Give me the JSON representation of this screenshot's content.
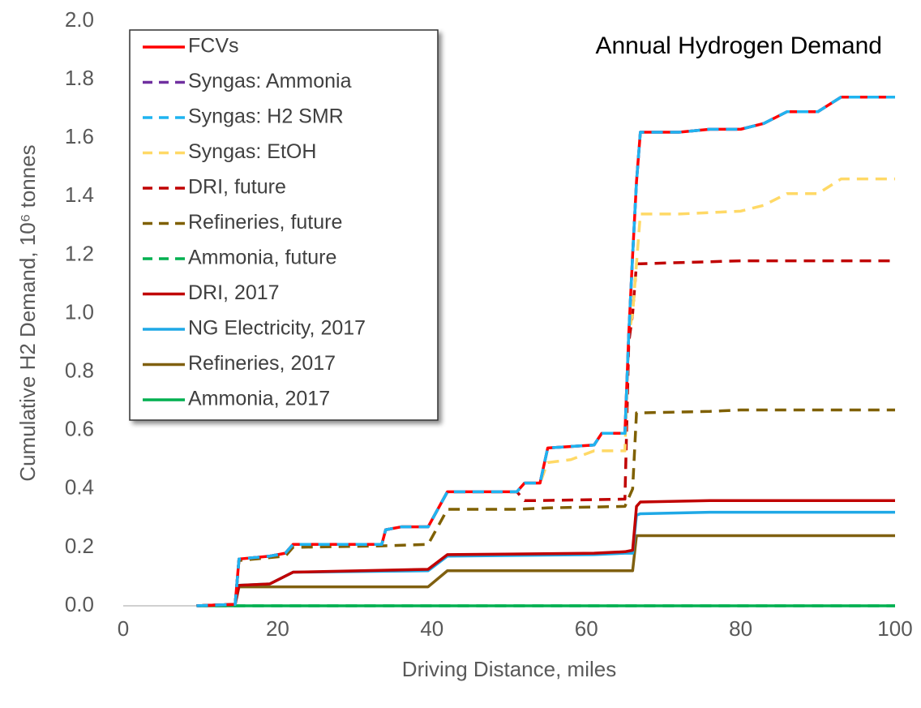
{
  "chart_data": {
    "type": "line",
    "annotation": "Annual Hydrogen Demand",
    "x_label": "Driving Distance, miles",
    "y_label": "Cumulative H2 Demand, 10⁶ tonnes",
    "xlim": [
      0,
      100
    ],
    "xticks": [
      0,
      20,
      40,
      60,
      80,
      100
    ],
    "ylim": [
      0,
      2
    ],
    "yticks": [
      {
        "value": 0,
        "label": "0.0"
      },
      0.2,
      0.4,
      0.6,
      0.8,
      {
        "value": 1,
        "label": "1.0"
      },
      1.2,
      1.4,
      1.6,
      1.8,
      {
        "value": 2,
        "label": "2.0"
      }
    ],
    "legend": "upper left",
    "series": [
      {
        "name": "FCVs",
        "color": "#ff0000",
        "dash": false,
        "x": [
          9.5,
          14.5,
          15,
          19,
          21,
          22,
          33.5,
          34,
          36,
          39.5,
          42,
          51,
          52,
          54,
          55,
          61,
          62,
          65,
          65.5,
          66,
          66.5,
          67,
          72,
          76,
          80,
          83,
          86,
          90,
          93,
          100
        ],
        "values": [
          0,
          0.005,
          0.16,
          0.17,
          0.18,
          0.21,
          0.21,
          0.26,
          0.27,
          0.27,
          0.39,
          0.39,
          0.42,
          0.42,
          0.54,
          0.55,
          0.59,
          0.59,
          0.93,
          1.2,
          1.45,
          1.62,
          1.62,
          1.63,
          1.63,
          1.65,
          1.69,
          1.69,
          1.74,
          1.74
        ]
      },
      {
        "name": "Syngas: Ammonia",
        "color": "#7030a0",
        "dash": true,
        "x": [
          9.5,
          14.5,
          15,
          19,
          21,
          22,
          33.5,
          34,
          36,
          39.5,
          42,
          51,
          52,
          54,
          55,
          61,
          62,
          65,
          65.5,
          66,
          66.5,
          67,
          72,
          76,
          80,
          83,
          86,
          90,
          93,
          100
        ],
        "values": [
          0,
          0.005,
          0.16,
          0.17,
          0.18,
          0.21,
          0.21,
          0.26,
          0.27,
          0.27,
          0.39,
          0.39,
          0.42,
          0.42,
          0.54,
          0.55,
          0.59,
          0.59,
          0.93,
          1.2,
          1.45,
          1.62,
          1.62,
          1.63,
          1.63,
          1.65,
          1.69,
          1.69,
          1.74,
          1.74
        ]
      },
      {
        "name": "Syngas: H2 SMR",
        "color": "#1fb4f0",
        "dash": true,
        "x": [
          9.5,
          14.5,
          15,
          19,
          21,
          22,
          33.5,
          34,
          36,
          39.5,
          42,
          51,
          52,
          54,
          55,
          61,
          62,
          65,
          65.5,
          66,
          66.5,
          67,
          72,
          76,
          80,
          83,
          86,
          90,
          93,
          100
        ],
        "values": [
          0,
          0.005,
          0.16,
          0.17,
          0.18,
          0.21,
          0.21,
          0.26,
          0.27,
          0.27,
          0.39,
          0.39,
          0.42,
          0.42,
          0.54,
          0.55,
          0.59,
          0.59,
          0.93,
          1.2,
          1.45,
          1.62,
          1.62,
          1.63,
          1.63,
          1.65,
          1.69,
          1.69,
          1.74,
          1.74
        ]
      },
      {
        "name": "Syngas: EtOH",
        "color": "#ffd966",
        "dash": true,
        "x": [
          9.5,
          14.5,
          15,
          19,
          21,
          22,
          33.5,
          34,
          36,
          39.5,
          42,
          51,
          52,
          54,
          55,
          58,
          61,
          65,
          65.5,
          66,
          67,
          72,
          76,
          80,
          83,
          86,
          90,
          93,
          100
        ],
        "values": [
          0,
          0.005,
          0.16,
          0.17,
          0.18,
          0.21,
          0.21,
          0.26,
          0.27,
          0.27,
          0.39,
          0.39,
          0.42,
          0.42,
          0.49,
          0.5,
          0.53,
          0.53,
          0.93,
          1.0,
          1.34,
          1.34,
          1.345,
          1.35,
          1.37,
          1.41,
          1.41,
          1.46,
          1.46
        ]
      },
      {
        "name": "DRI, future",
        "color": "#c00000",
        "dash": true,
        "x": [
          9.5,
          14.5,
          15,
          19,
          21,
          22,
          33.5,
          34,
          36,
          39.5,
          42,
          51,
          52,
          54,
          65,
          65.5,
          66,
          66.5,
          67,
          80,
          100
        ],
        "values": [
          0,
          0.005,
          0.16,
          0.17,
          0.18,
          0.21,
          0.21,
          0.26,
          0.27,
          0.27,
          0.39,
          0.39,
          0.36,
          0.36,
          0.365,
          0.9,
          1.0,
          1.17,
          1.17,
          1.18,
          1.18
        ]
      },
      {
        "name": "Refineries, future",
        "color": "#7f6000",
        "dash": true,
        "x": [
          9.5,
          14.5,
          15,
          19,
          21,
          22,
          33.5,
          39.5,
          42,
          51,
          55,
          65,
          66,
          66.5,
          67,
          76,
          80,
          100
        ],
        "values": [
          0,
          0.005,
          0.155,
          0.165,
          0.17,
          0.2,
          0.205,
          0.21,
          0.33,
          0.33,
          0.335,
          0.34,
          0.4,
          0.66,
          0.66,
          0.665,
          0.67,
          0.67
        ]
      },
      {
        "name": "Ammonia, future",
        "color": "#00b050",
        "dash": true,
        "x": [
          9.5,
          100
        ],
        "values": [
          0,
          0
        ]
      },
      {
        "name": "DRI, 2017",
        "color": "#c00000",
        "dash": false,
        "x": [
          9.5,
          14.5,
          15,
          19,
          22,
          39.5,
          42,
          61,
          65,
          66,
          66.5,
          67,
          76,
          100
        ],
        "values": [
          0,
          0.005,
          0.07,
          0.075,
          0.115,
          0.125,
          0.175,
          0.18,
          0.185,
          0.19,
          0.34,
          0.355,
          0.36,
          0.36
        ]
      },
      {
        "name": "NG Electricity, 2017",
        "color": "#1fa8e6",
        "dash": false,
        "x": [
          9.5,
          14.5,
          15,
          19,
          22,
          39.5,
          42,
          61,
          65,
          66,
          66.5,
          67,
          76,
          100
        ],
        "values": [
          0,
          0.005,
          0.07,
          0.075,
          0.115,
          0.12,
          0.17,
          0.175,
          0.18,
          0.18,
          0.31,
          0.315,
          0.32,
          0.32
        ]
      },
      {
        "name": "Refineries, 2017",
        "color": "#806010",
        "dash": false,
        "x": [
          9.5,
          14.5,
          15,
          39.5,
          42,
          66,
          66.5,
          100
        ],
        "values": [
          0,
          0.005,
          0.065,
          0.065,
          0.12,
          0.12,
          0.24,
          0.24
        ]
      },
      {
        "name": "Ammonia, 2017",
        "color": "#00b050",
        "dash": false,
        "x": [
          9.5,
          100
        ],
        "values": [
          0,
          0
        ]
      }
    ]
  }
}
